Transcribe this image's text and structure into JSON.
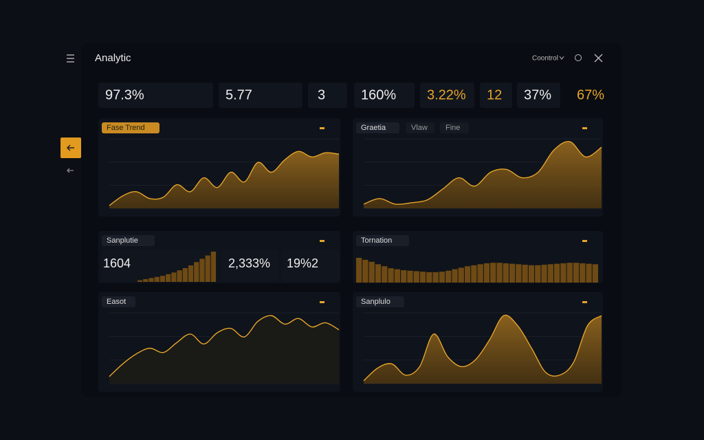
{
  "header": {
    "title": "Analytic",
    "control": "Coontrol"
  },
  "kpis": [
    {
      "value": "97.3%"
    },
    {
      "value": "5.77"
    },
    {
      "value": "3"
    },
    {
      "value": "160%"
    },
    {
      "value": "3.22%",
      "accent": true
    },
    {
      "value": "12",
      "accent": true
    },
    {
      "value": "37%"
    },
    {
      "value": "67%",
      "accent": true
    }
  ],
  "panels": [
    {
      "title": "Fase Trend",
      "kind": "area",
      "values": [
        4,
        18,
        24,
        14,
        16,
        34,
        24,
        44,
        30,
        52,
        38,
        66,
        52,
        70,
        82,
        74,
        80,
        78
      ]
    },
    {
      "title": "Graetia",
      "tabs": [
        "Vlaw",
        "Fine"
      ],
      "kind": "area",
      "values": [
        6,
        14,
        6,
        8,
        12,
        28,
        44,
        32,
        52,
        56,
        44,
        52,
        84,
        96,
        74,
        88
      ]
    },
    {
      "title": "Sanplutie",
      "kind": "stats",
      "stats": [
        "1604",
        "2,333%",
        "19%2"
      ],
      "values": [
        3,
        5,
        7,
        9,
        11,
        14,
        17,
        21,
        25,
        30,
        36,
        42,
        48,
        55
      ]
    },
    {
      "title": "Tornation",
      "kind": "bars",
      "values": [
        100,
        92,
        84,
        74,
        66,
        58,
        54,
        50,
        48,
        46,
        44,
        42,
        42,
        44,
        48,
        54,
        60,
        66,
        70,
        74,
        78,
        80,
        80,
        78,
        76,
        74,
        72,
        70,
        70,
        72,
        74,
        76,
        78,
        80,
        80,
        78,
        76,
        74
      ]
    },
    {
      "title": "Easot",
      "kind": "line",
      "values": [
        10,
        28,
        42,
        50,
        44,
        58,
        70,
        56,
        72,
        78,
        66,
        88,
        96,
        84,
        92,
        80,
        86,
        76
      ]
    },
    {
      "title": "Sanplulo",
      "kind": "area",
      "values": [
        4,
        22,
        28,
        12,
        24,
        70,
        38,
        24,
        34,
        62,
        96,
        82,
        50,
        16,
        12,
        30,
        82,
        96
      ]
    }
  ]
}
